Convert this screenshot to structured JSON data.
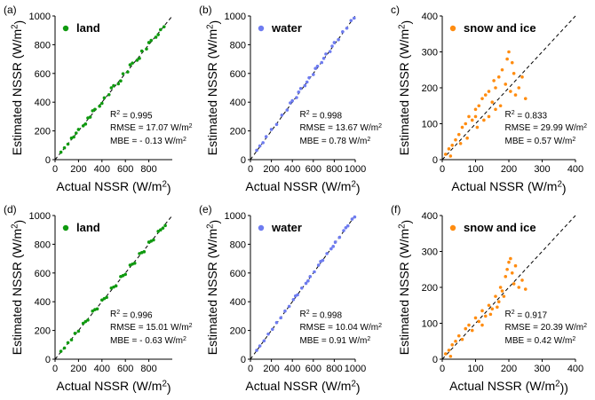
{
  "colors": {
    "land": "#0f9a0f",
    "water": "#6e7cf0",
    "snow": "#ff8c10"
  },
  "chart_data": [
    {
      "type": "scatter",
      "panel": "(a)",
      "xlabel": "Actual NSSR (W/m²)",
      "ylabel": "Estimated NSSR (W/m²)",
      "xlim": [
        0,
        1000
      ],
      "ylim": [
        0,
        1000
      ],
      "xticks": [
        "0",
        "200",
        "400",
        "600",
        "800"
      ],
      "yticks": [
        "0",
        "200",
        "400",
        "600",
        "800",
        "1000"
      ],
      "legend": "land",
      "color_key": "land",
      "stats": [
        "R² = 0.995",
        "RMSE = 17.07 W/m²",
        "MBE = - 0.13 W/m²"
      ],
      "points": [
        [
          50,
          52
        ],
        [
          80,
          82
        ],
        [
          110,
          108
        ],
        [
          140,
          150
        ],
        [
          160,
          158
        ],
        [
          200,
          210
        ],
        [
          240,
          235
        ],
        [
          280,
          290
        ],
        [
          300,
          296
        ],
        [
          340,
          350
        ],
        [
          380,
          372
        ],
        [
          420,
          430
        ],
        [
          460,
          452
        ],
        [
          500,
          515
        ],
        [
          540,
          528
        ],
        [
          580,
          598
        ],
        [
          620,
          610
        ],
        [
          660,
          672
        ],
        [
          700,
          692
        ],
        [
          740,
          756
        ],
        [
          780,
          770
        ],
        [
          820,
          830
        ],
        [
          860,
          852
        ],
        [
          900,
          905
        ],
        [
          930,
          925
        ],
        [
          180,
          185
        ],
        [
          260,
          248
        ],
        [
          320,
          340
        ],
        [
          400,
          392
        ],
        [
          480,
          500
        ],
        [
          560,
          548
        ],
        [
          640,
          660
        ],
        [
          720,
          705
        ],
        [
          800,
          815
        ],
        [
          880,
          870
        ]
      ]
    },
    {
      "type": "scatter",
      "panel": "(b)",
      "xlabel": "Actual NSSR (W/m²)",
      "ylabel": "Estimated NSSR (W/m²)",
      "xlim": [
        0,
        1000
      ],
      "ylim": [
        0,
        1000
      ],
      "xticks": [
        "0",
        "200",
        "400",
        "600",
        "800",
        "1000"
      ],
      "yticks": [
        "0",
        "200",
        "400",
        "600",
        "800",
        "1000"
      ],
      "legend": "water",
      "color_key": "water",
      "stats": [
        "R² = 0.998",
        "RMSE = 13.67 W/m²",
        "MBE = 0.78 W/m²"
      ],
      "points": [
        [
          60,
          65
        ],
        [
          90,
          95
        ],
        [
          120,
          118
        ],
        [
          150,
          160
        ],
        [
          200,
          210
        ],
        [
          250,
          245
        ],
        [
          300,
          310
        ],
        [
          350,
          345
        ],
        [
          400,
          410
        ],
        [
          440,
          432
        ],
        [
          480,
          495
        ],
        [
          520,
          515
        ],
        [
          560,
          570
        ],
        [
          600,
          592
        ],
        [
          640,
          650
        ],
        [
          680,
          676
        ],
        [
          720,
          735
        ],
        [
          760,
          752
        ],
        [
          800,
          815
        ],
        [
          840,
          835
        ],
        [
          880,
          890
        ],
        [
          920,
          915
        ],
        [
          960,
          968
        ],
        [
          990,
          985
        ],
        [
          380,
          395
        ],
        [
          460,
          470
        ],
        [
          540,
          540
        ],
        [
          620,
          635
        ],
        [
          700,
          705
        ],
        [
          780,
          790
        ]
      ]
    },
    {
      "type": "scatter",
      "panel": "c)",
      "xlabel": "Actual NSSR (W/m²)",
      "ylabel": "Estimated NSSR (W/m²)",
      "xlim": [
        0,
        400
      ],
      "ylim": [
        0,
        400
      ],
      "xticks": [
        "0",
        "100",
        "200",
        "300",
        "400"
      ],
      "yticks": [
        "0",
        "100",
        "200",
        "300",
        "400"
      ],
      "legend": "snow and ice",
      "color_key": "snow",
      "stats": [
        "R² = 0.833",
        "RMSE = 29.99 W/m²",
        "MBE = 0.57 W/m²"
      ],
      "points": [
        [
          10,
          15
        ],
        [
          20,
          30
        ],
        [
          25,
          10
        ],
        [
          30,
          40
        ],
        [
          40,
          55
        ],
        [
          50,
          70
        ],
        [
          55,
          45
        ],
        [
          60,
          90
        ],
        [
          70,
          100
        ],
        [
          75,
          60
        ],
        [
          80,
          120
        ],
        [
          90,
          110
        ],
        [
          100,
          140
        ],
        [
          105,
          90
        ],
        [
          110,
          150
        ],
        [
          120,
          170
        ],
        [
          125,
          110
        ],
        [
          130,
          180
        ],
        [
          140,
          190
        ],
        [
          150,
          160
        ],
        [
          155,
          220
        ],
        [
          160,
          200
        ],
        [
          170,
          230
        ],
        [
          175,
          150
        ],
        [
          180,
          250
        ],
        [
          190,
          210
        ],
        [
          195,
          280
        ],
        [
          200,
          300
        ],
        [
          205,
          190
        ],
        [
          210,
          270
        ],
        [
          215,
          240
        ],
        [
          220,
          180
        ],
        [
          230,
          200
        ],
        [
          240,
          230
        ],
        [
          250,
          170
        ],
        [
          140,
          120
        ],
        [
          100,
          120
        ],
        [
          160,
          140
        ]
      ]
    },
    {
      "type": "scatter",
      "panel": "(d)",
      "xlabel": "Actual NSSR (W/m²)",
      "ylabel": "Estimated NSSR (W/m²)",
      "xlim": [
        0,
        1000
      ],
      "ylim": [
        0,
        1000
      ],
      "xticks": [
        "0",
        "200",
        "400",
        "600",
        "800"
      ],
      "yticks": [
        "0",
        "200",
        "400",
        "600",
        "800",
        "1000"
      ],
      "legend": "land",
      "color_key": "land",
      "stats": [
        "R² = 0.996",
        "RMSE = 15.01 W/m²",
        "MBE = - 0.63 W/m²"
      ],
      "points": [
        [
          50,
          55
        ],
        [
          80,
          78
        ],
        [
          110,
          115
        ],
        [
          140,
          135
        ],
        [
          170,
          180
        ],
        [
          200,
          195
        ],
        [
          240,
          250
        ],
        [
          280,
          272
        ],
        [
          320,
          335
        ],
        [
          360,
          350
        ],
        [
          400,
          412
        ],
        [
          440,
          430
        ],
        [
          480,
          495
        ],
        [
          520,
          510
        ],
        [
          560,
          575
        ],
        [
          600,
          590
        ],
        [
          640,
          655
        ],
        [
          680,
          668
        ],
        [
          720,
          735
        ],
        [
          760,
          748
        ],
        [
          800,
          815
        ],
        [
          840,
          830
        ],
        [
          880,
          890
        ],
        [
          920,
          912
        ],
        [
          940,
          930
        ],
        [
          260,
          262
        ],
        [
          340,
          345
        ],
        [
          420,
          422
        ],
        [
          500,
          502
        ],
        [
          580,
          582
        ],
        [
          660,
          662
        ],
        [
          740,
          742
        ],
        [
          820,
          822
        ],
        [
          900,
          900
        ]
      ]
    },
    {
      "type": "scatter",
      "panel": "(e)",
      "xlabel": "Actual NSSR (W/m²)",
      "ylabel": "Estimated NSSR (W/m²)",
      "xlim": [
        0,
        1000
      ],
      "ylim": [
        0,
        1000
      ],
      "xticks": [
        "0",
        "200",
        "400",
        "600",
        "800",
        "1000"
      ],
      "yticks": [
        "0",
        "200",
        "400",
        "600",
        "800",
        "1000"
      ],
      "legend": "water",
      "color_key": "water",
      "stats": [
        "R² = 0.998",
        "RMSE = 10.04 W/m²",
        "MBE = 0.91 W/m²"
      ],
      "points": [
        [
          60,
          62
        ],
        [
          90,
          92
        ],
        [
          130,
          128
        ],
        [
          170,
          175
        ],
        [
          210,
          208
        ],
        [
          250,
          255
        ],
        [
          290,
          288
        ],
        [
          330,
          335
        ],
        [
          370,
          368
        ],
        [
          410,
          415
        ],
        [
          450,
          448
        ],
        [
          490,
          495
        ],
        [
          530,
          528
        ],
        [
          570,
          575
        ],
        [
          610,
          608
        ],
        [
          650,
          655
        ],
        [
          690,
          688
        ],
        [
          730,
          735
        ],
        [
          770,
          768
        ],
        [
          810,
          815
        ],
        [
          850,
          848
        ],
        [
          890,
          895
        ],
        [
          930,
          928
        ],
        [
          970,
          975
        ],
        [
          995,
          990
        ],
        [
          430,
          440
        ],
        [
          550,
          545
        ],
        [
          670,
          680
        ],
        [
          790,
          785
        ],
        [
          910,
          915
        ]
      ]
    },
    {
      "type": "scatter",
      "panel": "(f)",
      "xlabel": "Actual NSSR (W/m²))",
      "ylabel": "Estimated NSSR (W/m²)",
      "xlim": [
        0,
        400
      ],
      "ylim": [
        0,
        400
      ],
      "xticks": [
        "0",
        "100",
        "200",
        "300",
        "400"
      ],
      "yticks": [
        "0",
        "100",
        "200",
        "300",
        "400"
      ],
      "legend": "snow and ice",
      "color_key": "snow",
      "stats": [
        "R² = 0.917",
        "RMSE = 20.39 W/m²",
        "MBE = 0.42 W/m²"
      ],
      "points": [
        [
          10,
          15
        ],
        [
          20,
          25
        ],
        [
          25,
          8
        ],
        [
          30,
          40
        ],
        [
          40,
          50
        ],
        [
          50,
          65
        ],
        [
          60,
          55
        ],
        [
          70,
          85
        ],
        [
          80,
          95
        ],
        [
          90,
          80
        ],
        [
          100,
          115
        ],
        [
          110,
          105
        ],
        [
          120,
          135
        ],
        [
          130,
          120
        ],
        [
          140,
          150
        ],
        [
          150,
          140
        ],
        [
          160,
          175
        ],
        [
          170,
          160
        ],
        [
          175,
          200
        ],
        [
          180,
          190
        ],
        [
          190,
          230
        ],
        [
          195,
          250
        ],
        [
          200,
          270
        ],
        [
          205,
          280
        ],
        [
          210,
          240
        ],
        [
          215,
          210
        ],
        [
          220,
          260
        ],
        [
          230,
          200
        ],
        [
          240,
          220
        ],
        [
          250,
          195
        ],
        [
          120,
          95
        ],
        [
          145,
          125
        ],
        [
          165,
          145
        ],
        [
          185,
          175
        ]
      ]
    }
  ]
}
